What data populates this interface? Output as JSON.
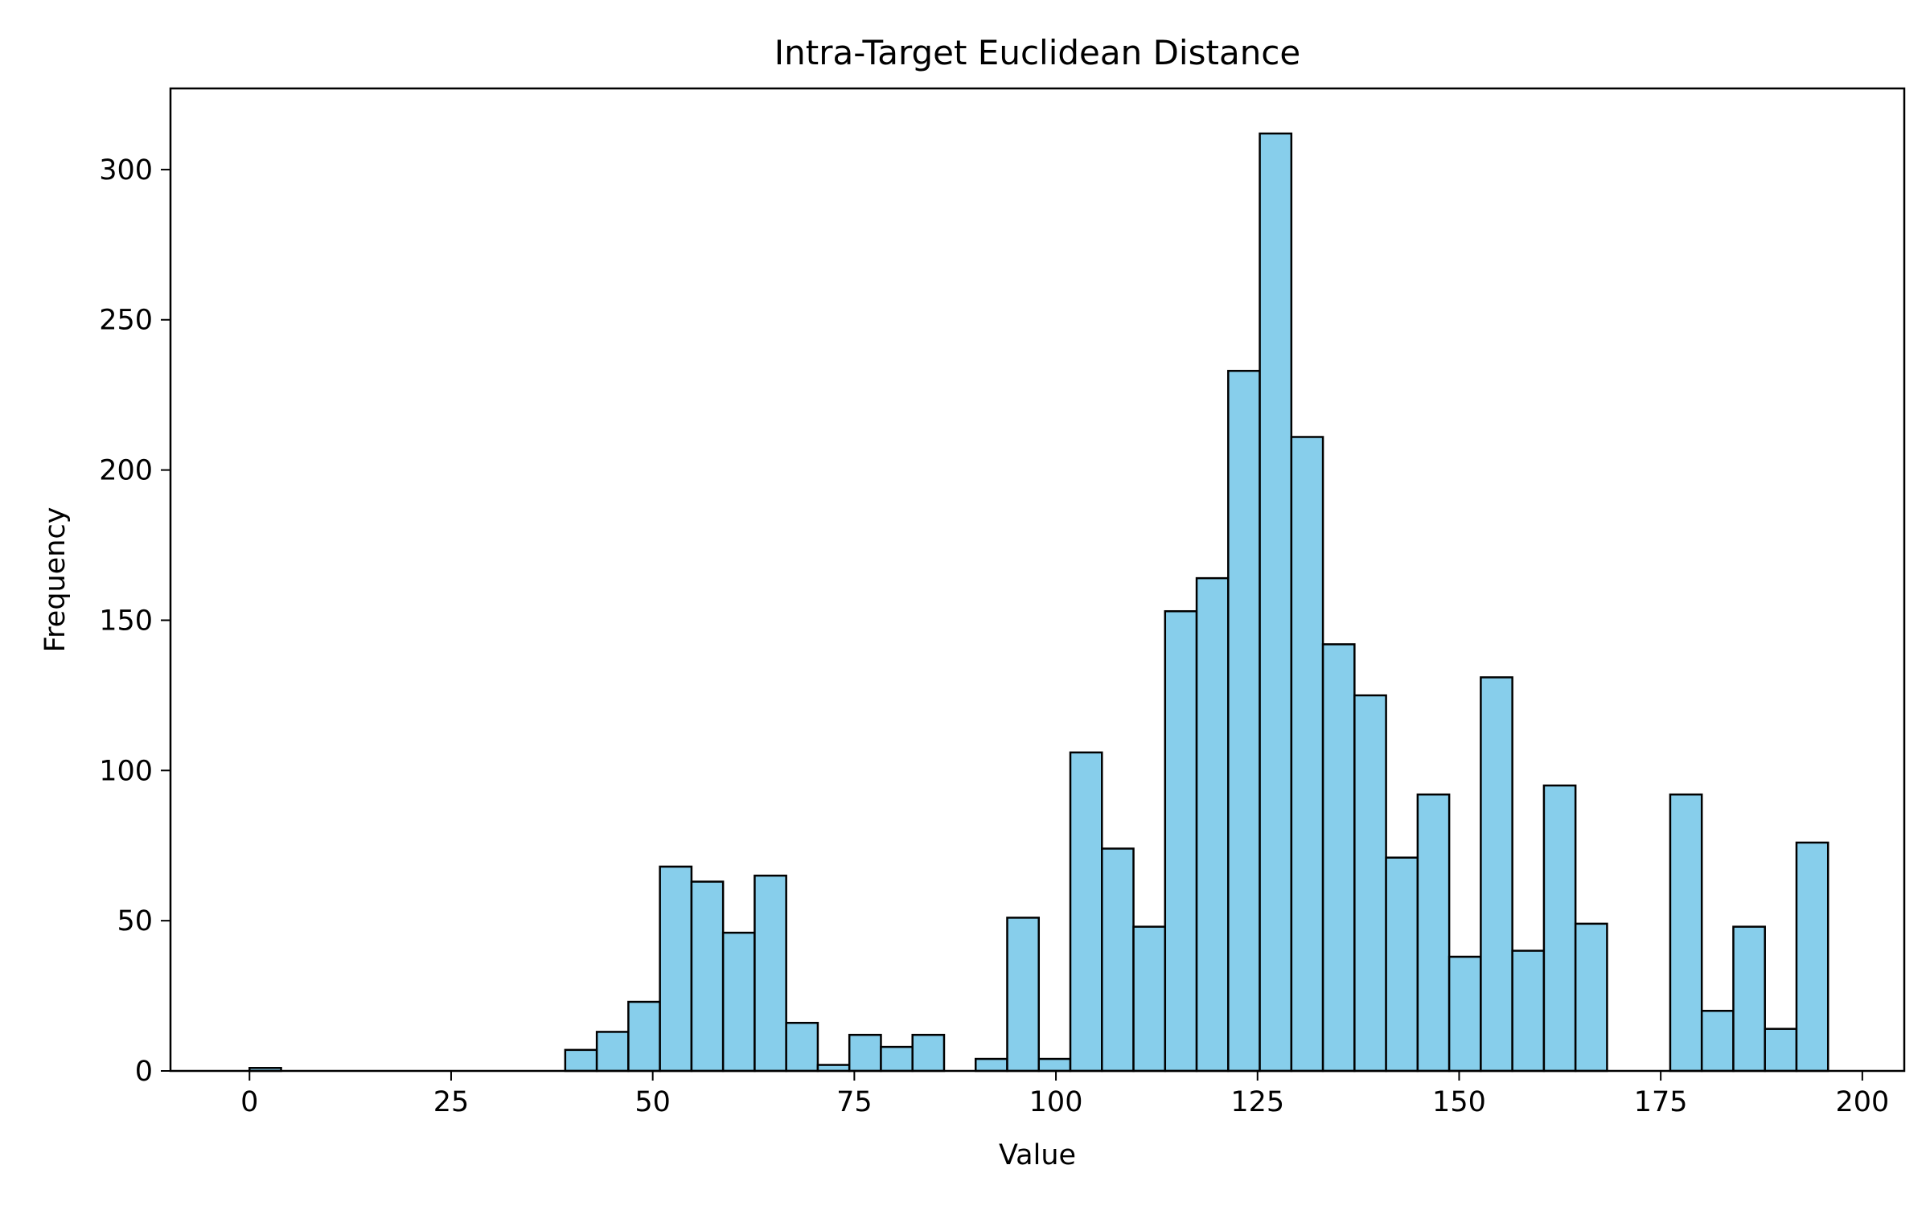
{
  "chart_data": {
    "type": "bar",
    "title": "Intra-Target Euclidean Distance",
    "xlabel": "Value",
    "ylabel": "Frequency",
    "xlim": [
      -9.8,
      205.2
    ],
    "ylim": [
      0,
      327
    ],
    "xticks": [
      0,
      25,
      50,
      75,
      100,
      125,
      150,
      175,
      200
    ],
    "yticks": [
      0,
      50,
      100,
      150,
      200,
      250,
      300
    ],
    "bin_width": 3.915,
    "bin_start": 0,
    "values": [
      1,
      0,
      0,
      0,
      0,
      0,
      0,
      0,
      0,
      0,
      7,
      13,
      23,
      68,
      63,
      46,
      65,
      16,
      2,
      12,
      8,
      12,
      0,
      4,
      51,
      4,
      106,
      74,
      48,
      153,
      164,
      233,
      312,
      211,
      142,
      125,
      71,
      92,
      38,
      131,
      40,
      95,
      49,
      0,
      0,
      92,
      20,
      48,
      14,
      76
    ],
    "bar_color": "#87CEEB",
    "edge_color": "#000000",
    "grid": false
  }
}
